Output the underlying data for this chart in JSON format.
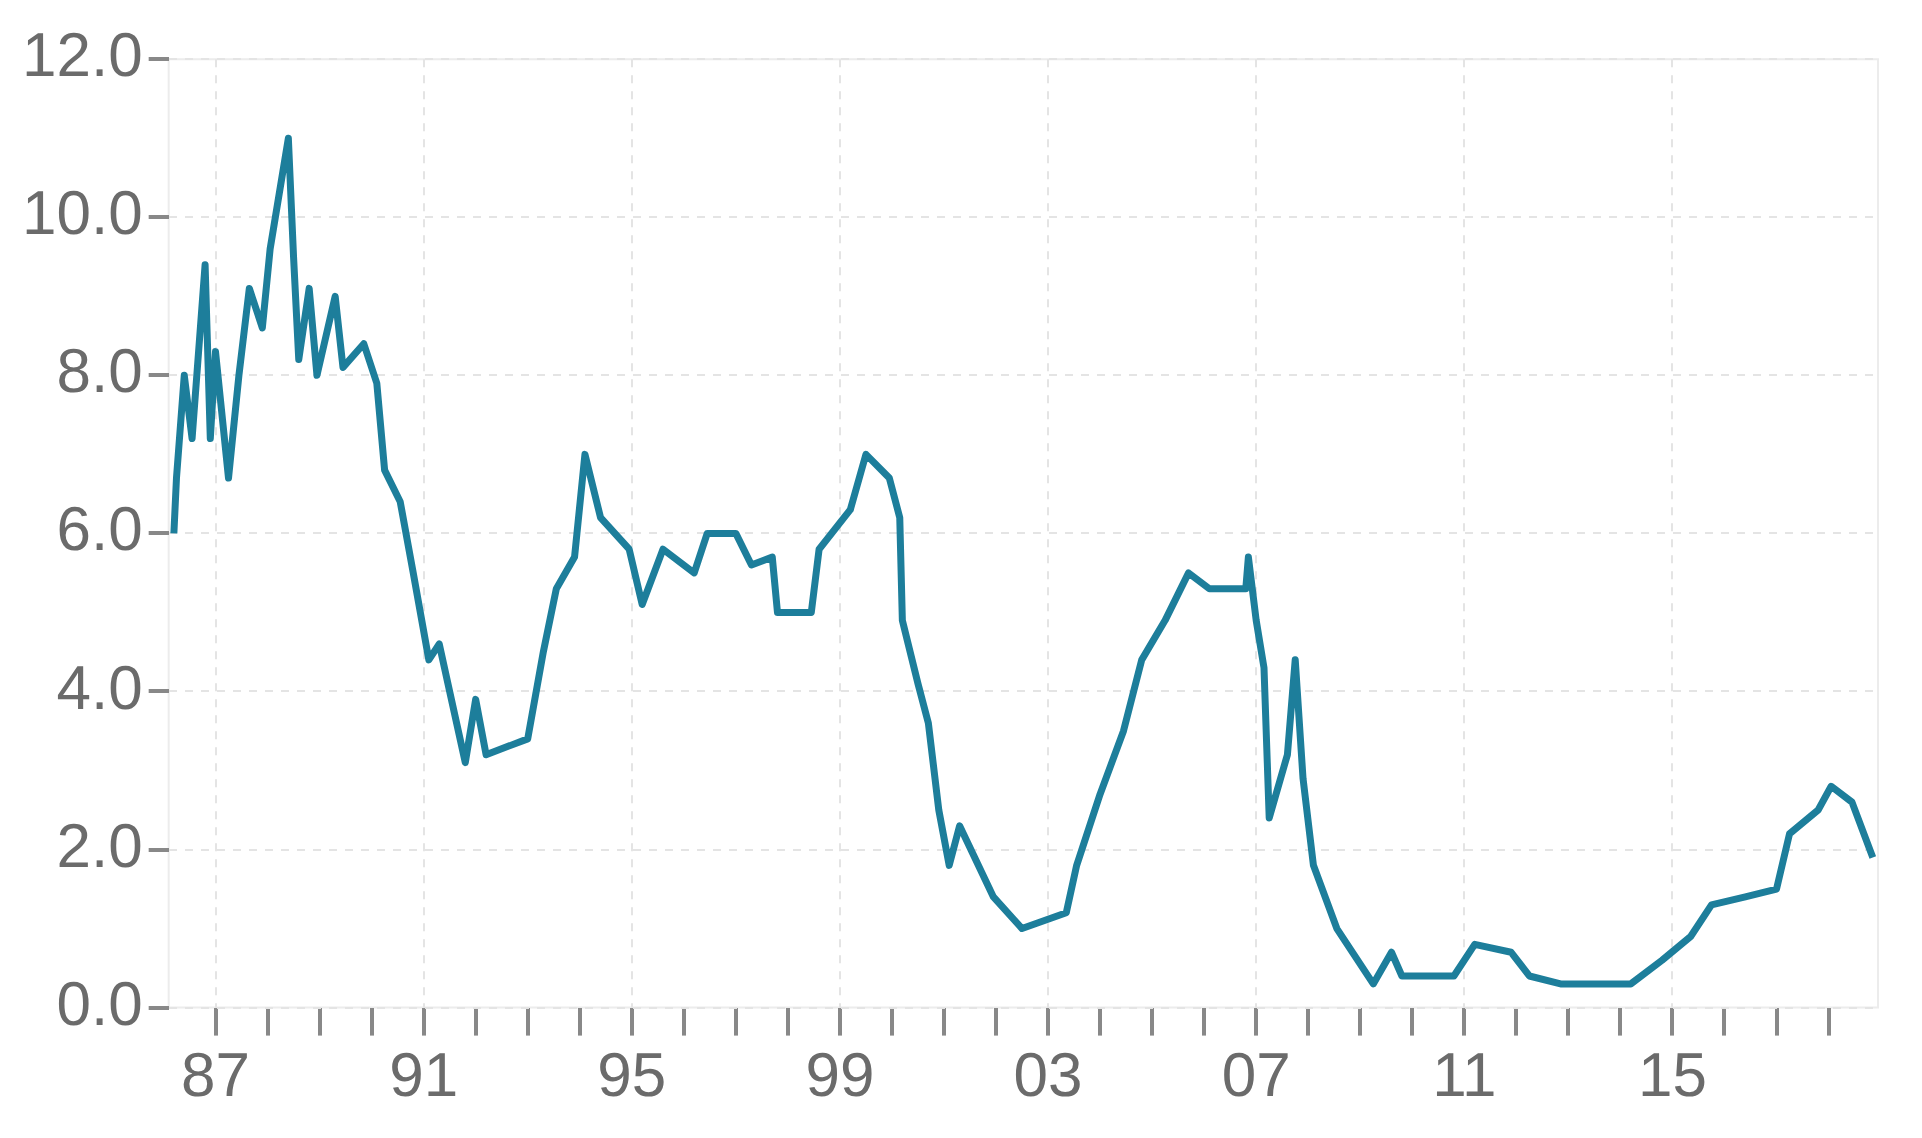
{
  "chart_data": {
    "type": "line",
    "x": [
      1986.2,
      1986.25,
      1986.4,
      1986.55,
      1986.8,
      1986.9,
      1987.0,
      1987.25,
      1987.45,
      1987.65,
      1987.9,
      1988.05,
      1988.3,
      1988.4,
      1988.5,
      1988.6,
      1988.8,
      1988.95,
      1989.3,
      1989.45,
      1989.85,
      1990.1,
      1990.25,
      1990.55,
      1990.8,
      1991.1,
      1991.3,
      1991.5,
      1991.8,
      1992.0,
      1992.2,
      1993.0,
      1993.3,
      1993.55,
      1993.9,
      1994.1,
      1994.4,
      1994.95,
      1995.2,
      1995.6,
      1996.2,
      1996.45,
      1997.0,
      1997.3,
      1997.7,
      1997.8,
      1998.45,
      1998.6,
      1999.2,
      1999.5,
      1999.95,
      2000.15,
      2000.2,
      2000.5,
      2000.7,
      2000.9,
      2001.1,
      2001.3,
      2001.95,
      2002.5,
      2003.35,
      2003.55,
      2004.0,
      2004.45,
      2004.8,
      2005.25,
      2005.7,
      2006.1,
      2006.8,
      2006.85,
      2007.0,
      2007.15,
      2007.25,
      2007.6,
      2007.75,
      2007.9,
      2008.1,
      2008.55,
      2009.25,
      2009.6,
      2009.8,
      2010.8,
      2011.2,
      2011.9,
      2012.25,
      2012.85,
      2014.2,
      2014.8,
      2015.35,
      2015.75,
      2016.4,
      2017.0,
      2017.25,
      2017.8,
      2018.05,
      2018.45,
      2018.85
    ],
    "values": [
      6.0,
      6.7,
      8.0,
      7.2,
      9.4,
      7.2,
      8.3,
      6.7,
      8.0,
      9.1,
      8.6,
      9.6,
      10.6,
      11.0,
      9.5,
      8.2,
      9.1,
      8.0,
      9.0,
      8.1,
      8.4,
      7.9,
      6.8,
      6.4,
      5.5,
      4.4,
      4.6,
      4.0,
      3.1,
      3.9,
      3.2,
      3.4,
      4.5,
      5.3,
      5.7,
      7.0,
      6.2,
      5.8,
      5.1,
      5.8,
      5.5,
      6.0,
      6.0,
      5.6,
      5.7,
      5.0,
      5.0,
      5.8,
      6.3,
      7.0,
      6.7,
      6.2,
      4.9,
      4.1,
      3.6,
      2.5,
      1.8,
      2.3,
      1.4,
      1.0,
      1.2,
      1.8,
      2.7,
      3.5,
      4.4,
      4.9,
      5.5,
      5.3,
      5.3,
      5.7,
      4.9,
      4.3,
      2.4,
      3.2,
      4.4,
      2.9,
      1.8,
      1.0,
      0.3,
      0.7,
      0.4,
      0.4,
      0.8,
      0.7,
      0.4,
      0.3,
      0.3,
      0.6,
      0.9,
      1.3,
      1.4,
      1.5,
      2.2,
      2.5,
      2.8,
      2.6,
      1.9
    ],
    "color": "#1d7e9b",
    "xlim": [
      1986.1,
      2018.95
    ],
    "xticks": [
      {
        "value": 1987,
        "label": "87"
      },
      {
        "value": 1988,
        "label": null
      },
      {
        "value": 1989,
        "label": null
      },
      {
        "value": 1990,
        "label": null
      },
      {
        "value": 1991,
        "label": "91"
      },
      {
        "value": 1992,
        "label": null
      },
      {
        "value": 1993,
        "label": null
      },
      {
        "value": 1994,
        "label": null
      },
      {
        "value": 1995,
        "label": "95"
      },
      {
        "value": 1996,
        "label": null
      },
      {
        "value": 1997,
        "label": null
      },
      {
        "value": 1998,
        "label": null
      },
      {
        "value": 1999,
        "label": "99"
      },
      {
        "value": 2000,
        "label": null
      },
      {
        "value": 2001,
        "label": null
      },
      {
        "value": 2002,
        "label": null
      },
      {
        "value": 2003,
        "label": "03"
      },
      {
        "value": 2004,
        "label": null
      },
      {
        "value": 2005,
        "label": null
      },
      {
        "value": 2006,
        "label": null
      },
      {
        "value": 2007,
        "label": "07"
      },
      {
        "value": 2008,
        "label": null
      },
      {
        "value": 2009,
        "label": null
      },
      {
        "value": 2010,
        "label": null
      },
      {
        "value": 2011,
        "label": "11"
      },
      {
        "value": 2012,
        "label": null
      },
      {
        "value": 2013,
        "label": null
      },
      {
        "value": 2014,
        "label": null
      },
      {
        "value": 2015,
        "label": "15"
      },
      {
        "value": 2016,
        "label": null
      },
      {
        "value": 2017,
        "label": null
      },
      {
        "value": 2018,
        "label": null
      }
    ],
    "ylim": [
      0,
      12
    ],
    "yticks": [
      {
        "value": 0,
        "label": "0.0"
      },
      {
        "value": 2,
        "label": "2.0"
      },
      {
        "value": 4,
        "label": "4.0"
      },
      {
        "value": 6,
        "label": "6.0"
      },
      {
        "value": 8,
        "label": "8.0"
      },
      {
        "value": 10,
        "label": "10.0"
      },
      {
        "value": 12,
        "label": "12.0"
      }
    ],
    "grid": true,
    "marker": "none",
    "line_style": "solid"
  }
}
